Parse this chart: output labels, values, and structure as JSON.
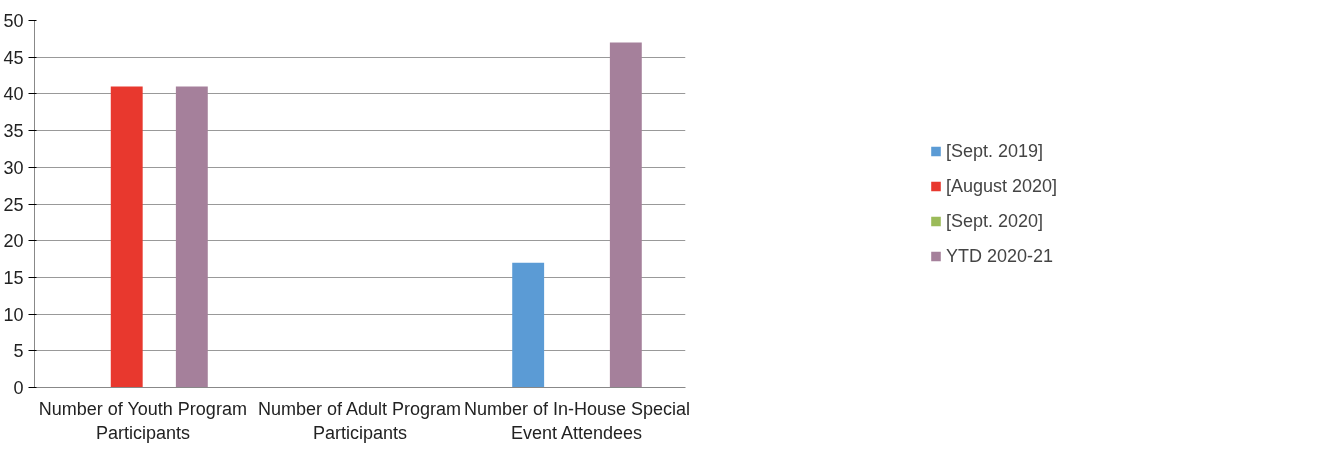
{
  "chart_data": {
    "type": "bar",
    "categories": [
      "Number of Youth Program Participants",
      "Number of Adult Program Participants",
      "Number of In-House Special Event Attendees"
    ],
    "series": [
      {
        "name": "[Sept. 2019]",
        "color": "#5b9bd5",
        "values": [
          0,
          0,
          17
        ]
      },
      {
        "name": "[August 2020]",
        "color": "#e8382e",
        "values": [
          41,
          0,
          0
        ]
      },
      {
        "name": "[Sept. 2020]",
        "color": "#9bbb59",
        "values": [
          0,
          0,
          0
        ]
      },
      {
        "name": "YTD 2020-21",
        "color": "#a5809b",
        "values": [
          41,
          0,
          47
        ]
      }
    ],
    "ylim": [
      0,
      50
    ],
    "yticks": [
      0,
      5,
      10,
      15,
      20,
      25,
      30,
      35,
      40,
      45,
      50
    ],
    "grid": "y",
    "legend": "right"
  }
}
